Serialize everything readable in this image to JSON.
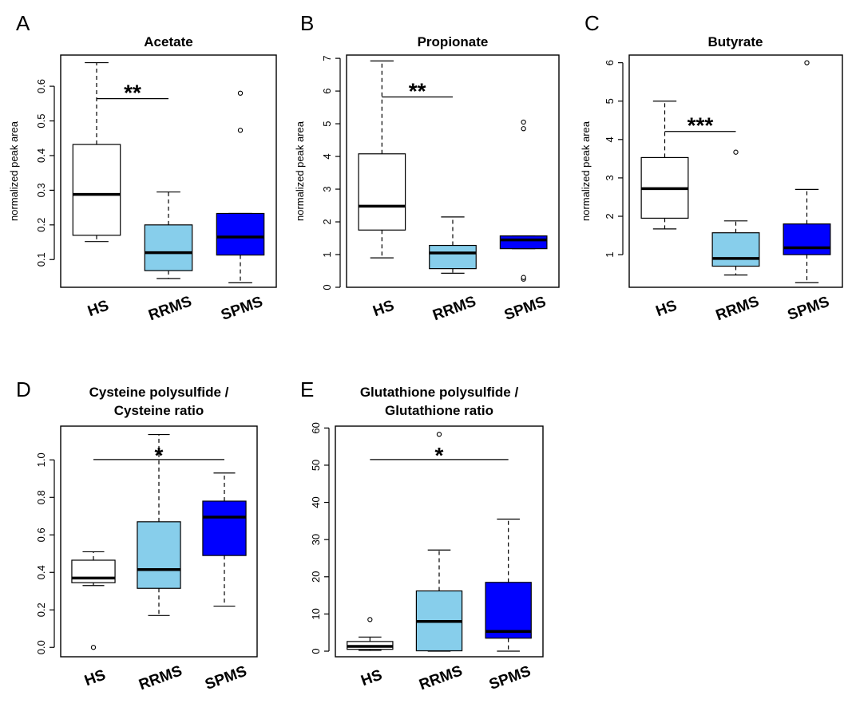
{
  "chart_data": [
    {
      "type": "box",
      "panel": "A",
      "title": "Acetate",
      "ylabel": "normalized peak area",
      "ylim": [
        0.02,
        0.69
      ],
      "yticks": [
        "0.1",
        "0.2",
        "0.3",
        "0.4",
        "0.5",
        "0.6"
      ],
      "categories": [
        "HS",
        "RRMS",
        "SPMS"
      ],
      "colors": [
        "#ffffff",
        "#87ceeb",
        "#0000ff"
      ],
      "boxes": [
        {
          "min": 0.152,
          "q1": 0.17,
          "median": 0.288,
          "q3": 0.432,
          "max": 0.668,
          "outliers": []
        },
        {
          "min": 0.045,
          "q1": 0.068,
          "median": 0.12,
          "q3": 0.2,
          "max": 0.295,
          "outliers": []
        },
        {
          "min": 0.033,
          "q1": 0.113,
          "median": 0.165,
          "q3": 0.233,
          "max": 0.233,
          "outliers": [
            0.473,
            0.58
          ]
        }
      ],
      "significance": {
        "from": "HS",
        "to": "RRMS",
        "label": "**"
      }
    },
    {
      "type": "box",
      "panel": "B",
      "title": "Propionate",
      "ylabel": "normalized peak area",
      "ylim": [
        0,
        7.1
      ],
      "yticks": [
        "0",
        "1",
        "2",
        "3",
        "4",
        "5",
        "6",
        "7"
      ],
      "categories": [
        "HS",
        "RRMS",
        "SPMS"
      ],
      "colors": [
        "#ffffff",
        "#87ceeb",
        "#0000ff"
      ],
      "boxes": [
        {
          "min": 0.9,
          "q1": 1.75,
          "median": 2.48,
          "q3": 4.08,
          "max": 6.92,
          "outliers": []
        },
        {
          "min": 0.43,
          "q1": 0.57,
          "median": 1.05,
          "q3": 1.28,
          "max": 2.15,
          "outliers": []
        },
        {
          "min": 1.18,
          "q1": 1.18,
          "median": 1.45,
          "q3": 1.57,
          "max": 1.57,
          "outliers": [
            0.25,
            0.3,
            4.85,
            5.05
          ]
        }
      ],
      "significance": {
        "from": "HS",
        "to": "RRMS",
        "label": "**"
      }
    },
    {
      "type": "box",
      "panel": "C",
      "title": "Butyrate",
      "ylabel": "normalized peak area",
      "ylim": [
        0.15,
        6.2
      ],
      "yticks": [
        "1",
        "2",
        "3",
        "4",
        "5",
        "6"
      ],
      "categories": [
        "HS",
        "RRMS",
        "SPMS"
      ],
      "colors": [
        "#ffffff",
        "#87ceeb",
        "#0000ff"
      ],
      "boxes": [
        {
          "min": 1.67,
          "q1": 1.95,
          "median": 2.72,
          "q3": 3.53,
          "max": 5.0,
          "outliers": []
        },
        {
          "min": 0.47,
          "q1": 0.7,
          "median": 0.9,
          "q3": 1.57,
          "max": 1.88,
          "outliers": [
            3.67
          ]
        },
        {
          "min": 0.27,
          "q1": 1.0,
          "median": 1.18,
          "q3": 1.8,
          "max": 2.7,
          "outliers": [
            6.0
          ]
        }
      ],
      "significance": {
        "from": "HS",
        "to": "RRMS",
        "label": "***"
      }
    },
    {
      "type": "box",
      "panel": "D",
      "title": "Cysteine polysulfide /",
      "subtitle": "Cysteine ratio",
      "ylabel": "",
      "ylim": [
        -0.05,
        1.18
      ],
      "yticks": [
        "0.0",
        "0.2",
        "0.4",
        "0.6",
        "0.8",
        "1.0"
      ],
      "categories": [
        "HS",
        "RRMS",
        "SPMS"
      ],
      "colors": [
        "#ffffff",
        "#87ceeb",
        "#0000ff"
      ],
      "boxes": [
        {
          "min": 0.33,
          "q1": 0.345,
          "median": 0.37,
          "q3": 0.465,
          "max": 0.51,
          "outliers": [
            0.0
          ]
        },
        {
          "min": 0.17,
          "q1": 0.315,
          "median": 0.415,
          "q3": 0.67,
          "max": 1.135,
          "outliers": []
        },
        {
          "min": 0.22,
          "q1": 0.49,
          "median": 0.695,
          "q3": 0.78,
          "max": 0.93,
          "outliers": []
        }
      ],
      "significance": {
        "from": "HS",
        "to": "SPMS",
        "label": "*"
      }
    },
    {
      "type": "box",
      "panel": "E",
      "title": "Glutathione polysulfide /",
      "subtitle": "Glutathione ratio",
      "ylabel": "",
      "ylim": [
        -1.5,
        60.5
      ],
      "yticks": [
        "0",
        "10",
        "20",
        "30",
        "40",
        "50",
        "60"
      ],
      "categories": [
        "HS",
        "RRMS",
        "SPMS"
      ],
      "colors": [
        "#ffffff",
        "#87ceeb",
        "#0000ff"
      ],
      "boxes": [
        {
          "min": 0.2,
          "q1": 0.5,
          "median": 1.3,
          "q3": 2.6,
          "max": 3.8,
          "outliers": [
            8.5
          ]
        },
        {
          "min": 0.0,
          "q1": 0.1,
          "median": 8.0,
          "q3": 16.2,
          "max": 27.2,
          "outliers": [
            58.3
          ]
        },
        {
          "min": 0.0,
          "q1": 3.5,
          "median": 5.3,
          "q3": 18.5,
          "max": 35.5,
          "outliers": []
        }
      ],
      "significance": {
        "from": "HS",
        "to": "SPMS",
        "label": "*"
      }
    }
  ]
}
